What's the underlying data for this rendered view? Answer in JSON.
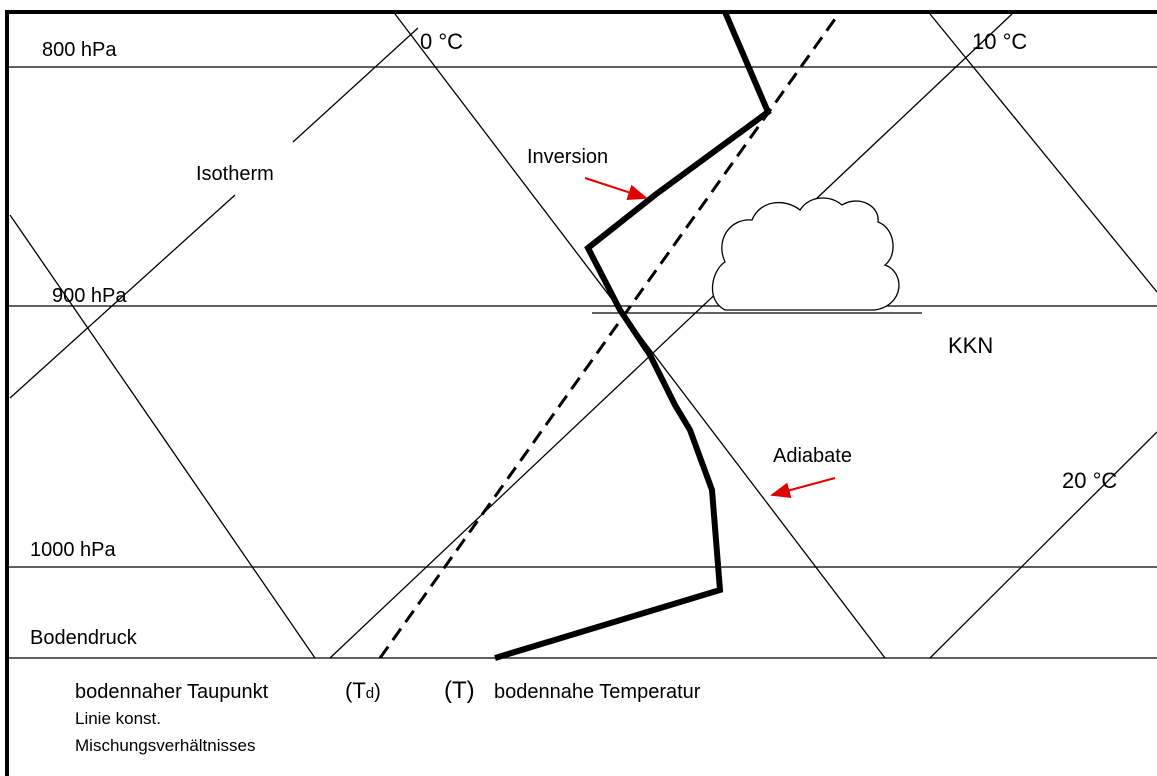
{
  "pressure_levels": {
    "p800": "800 hPa",
    "p900": "900 hPa",
    "p1000": "1000 hPa",
    "surface": "Bodendruck"
  },
  "isotherm_labels": {
    "t0": "0 °C",
    "t10": "10 °C",
    "t20": "20 °C"
  },
  "annotations": {
    "isotherm": "Isotherm",
    "inversion": "Inversion",
    "kkn": "KKN",
    "adiabate": "Adiabate"
  },
  "footer": {
    "dewpoint_text": "bodennaher Taupunkt",
    "dewpoint_symbol_open": "(T",
    "dewpoint_symbol_sub": "d",
    "dewpoint_symbol_close": ")",
    "temperature_symbol": "(T)",
    "temperature_text": "bodennahe Temperatur",
    "mixing_line_1": "Linie konst.",
    "mixing_line_2": "Mischungsverhältnisses"
  }
}
